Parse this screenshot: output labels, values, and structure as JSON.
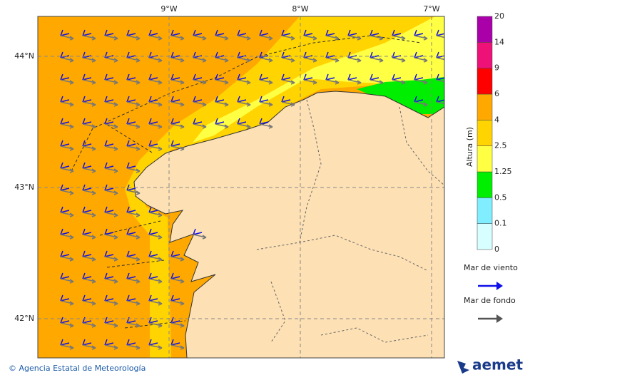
{
  "map": {
    "lon_labels": [
      "9°W",
      "8°W",
      "7°W"
    ],
    "lat_labels": [
      "44°N",
      "43°N",
      "42°N"
    ],
    "colorbar": {
      "title": "Altura (m)",
      "levels": [
        0,
        0.1,
        0.5,
        1.25,
        2.5,
        4,
        6,
        9,
        14,
        20
      ],
      "colors": [
        "#d8ffff",
        "#80eeff",
        "#00ee00",
        "#ffff44",
        "#ffd400",
        "#ffa800",
        "#ff0000",
        "#ee1177",
        "#aa00aa"
      ]
    },
    "legend": [
      {
        "label": "Mar de viento",
        "color": "#1010e8"
      },
      {
        "label": "Mar de fondo",
        "color": "#555555"
      }
    ],
    "footer": {
      "credit": "© Agencia Estatal de Meteorología",
      "logo": "aemet"
    }
  }
}
